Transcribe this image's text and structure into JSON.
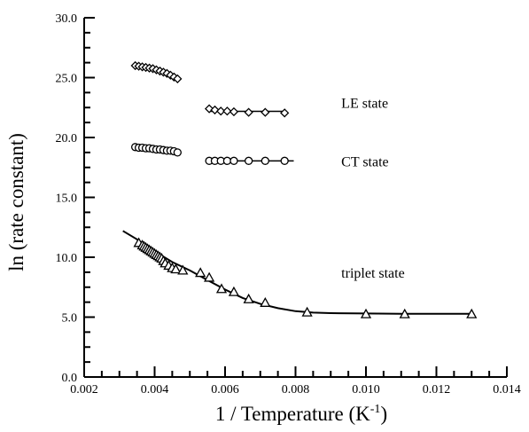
{
  "chart_data": {
    "type": "scatter",
    "xlabel": "1 / Temperature (K",
    "xlabel_superscript": "-1",
    "xlabel_suffix": ")",
    "ylabel": "ln (rate constant)",
    "xlim": [
      0.002,
      0.014
    ],
    "ylim": [
      0.0,
      30.0
    ],
    "x_ticks": [
      0.002,
      0.004,
      0.006,
      0.008,
      0.01,
      0.012,
      0.014
    ],
    "x_tick_labels": [
      "0.002",
      "0.004",
      "0.006",
      "0.008",
      "0.010",
      "0.012",
      "0.014"
    ],
    "y_ticks": [
      0,
      5,
      10,
      15,
      20,
      25,
      30
    ],
    "y_tick_labels": [
      "0.0",
      "5.0",
      "10.0",
      "15.0",
      "20.0",
      "25.0",
      "30.0"
    ],
    "grid": false,
    "legend": "inline labels",
    "series": [
      {
        "name": "LE state",
        "marker": "diamond",
        "points": [
          {
            "x": 0.00345,
            "y": 26.0
          },
          {
            "x": 0.00355,
            "y": 25.95
          },
          {
            "x": 0.00365,
            "y": 25.9
          },
          {
            "x": 0.00375,
            "y": 25.85
          },
          {
            "x": 0.00385,
            "y": 25.8
          },
          {
            "x": 0.00395,
            "y": 25.75
          },
          {
            "x": 0.00405,
            "y": 25.65
          },
          {
            "x": 0.00415,
            "y": 25.55
          },
          {
            "x": 0.00425,
            "y": 25.45
          },
          {
            "x": 0.00435,
            "y": 25.35
          },
          {
            "x": 0.00445,
            "y": 25.2
          },
          {
            "x": 0.00455,
            "y": 25.05
          },
          {
            "x": 0.00465,
            "y": 24.9
          },
          {
            "x": 0.00555,
            "y": 22.4
          },
          {
            "x": 0.00571,
            "y": 22.3
          },
          {
            "x": 0.00588,
            "y": 22.2
          },
          {
            "x": 0.00606,
            "y": 22.2
          },
          {
            "x": 0.00625,
            "y": 22.15
          },
          {
            "x": 0.00667,
            "y": 22.1
          },
          {
            "x": 0.00714,
            "y": 22.1
          },
          {
            "x": 0.00769,
            "y": 22.05
          }
        ],
        "segment": [
          0.00555,
          0.00769
        ],
        "label_pos": [
          0.0093,
          22.5
        ]
      },
      {
        "name": "CT state",
        "marker": "circle",
        "points": [
          {
            "x": 0.00345,
            "y": 19.2
          },
          {
            "x": 0.00355,
            "y": 19.15
          },
          {
            "x": 0.00365,
            "y": 19.15
          },
          {
            "x": 0.00375,
            "y": 19.1
          },
          {
            "x": 0.00385,
            "y": 19.1
          },
          {
            "x": 0.00395,
            "y": 19.05
          },
          {
            "x": 0.00405,
            "y": 19.0
          },
          {
            "x": 0.00415,
            "y": 19.0
          },
          {
            "x": 0.00425,
            "y": 18.95
          },
          {
            "x": 0.00435,
            "y": 18.9
          },
          {
            "x": 0.00445,
            "y": 18.9
          },
          {
            "x": 0.00455,
            "y": 18.85
          },
          {
            "x": 0.00465,
            "y": 18.75
          },
          {
            "x": 0.00555,
            "y": 18.05
          },
          {
            "x": 0.00571,
            "y": 18.05
          },
          {
            "x": 0.00588,
            "y": 18.05
          },
          {
            "x": 0.00606,
            "y": 18.05
          },
          {
            "x": 0.00625,
            "y": 18.05
          },
          {
            "x": 0.00667,
            "y": 18.05
          },
          {
            "x": 0.00714,
            "y": 18.05
          },
          {
            "x": 0.00769,
            "y": 18.05
          }
        ],
        "segment": [
          0.00555,
          0.00795
        ],
        "label_pos": [
          0.0093,
          17.6
        ]
      },
      {
        "name": "triplet state",
        "marker": "triangle",
        "points": [
          {
            "x": 0.00355,
            "y": 11.2
          },
          {
            "x": 0.00365,
            "y": 11.0
          },
          {
            "x": 0.0037,
            "y": 10.9
          },
          {
            "x": 0.00375,
            "y": 10.8
          },
          {
            "x": 0.0038,
            "y": 10.7
          },
          {
            "x": 0.00385,
            "y": 10.6
          },
          {
            "x": 0.0039,
            "y": 10.5
          },
          {
            "x": 0.00395,
            "y": 10.4
          },
          {
            "x": 0.004,
            "y": 10.3
          },
          {
            "x": 0.00405,
            "y": 10.2
          },
          {
            "x": 0.0041,
            "y": 10.1
          },
          {
            "x": 0.00415,
            "y": 10.0
          },
          {
            "x": 0.0042,
            "y": 9.9
          },
          {
            "x": 0.00425,
            "y": 9.7
          },
          {
            "x": 0.0043,
            "y": 9.5
          },
          {
            "x": 0.0044,
            "y": 9.3
          },
          {
            "x": 0.0045,
            "y": 9.1
          },
          {
            "x": 0.0046,
            "y": 9.0
          },
          {
            "x": 0.0048,
            "y": 8.9
          },
          {
            "x": 0.0053,
            "y": 8.7
          },
          {
            "x": 0.00555,
            "y": 8.3
          },
          {
            "x": 0.0059,
            "y": 7.35
          },
          {
            "x": 0.00625,
            "y": 7.1
          },
          {
            "x": 0.00667,
            "y": 6.5
          },
          {
            "x": 0.00714,
            "y": 6.2
          },
          {
            "x": 0.00833,
            "y": 5.4
          },
          {
            "x": 0.01,
            "y": 5.25
          },
          {
            "x": 0.0111,
            "y": 5.25
          },
          {
            "x": 0.013,
            "y": 5.25
          }
        ],
        "fit_curve": [
          {
            "x": 0.0031,
            "y": 12.2
          },
          {
            "x": 0.0035,
            "y": 11.5
          },
          {
            "x": 0.004,
            "y": 10.5
          },
          {
            "x": 0.0045,
            "y": 9.6
          },
          {
            "x": 0.005,
            "y": 8.9
          },
          {
            "x": 0.0055,
            "y": 8.1
          },
          {
            "x": 0.006,
            "y": 7.3
          },
          {
            "x": 0.0065,
            "y": 6.6
          },
          {
            "x": 0.007,
            "y": 6.1
          },
          {
            "x": 0.0075,
            "y": 5.75
          },
          {
            "x": 0.008,
            "y": 5.5
          },
          {
            "x": 0.0085,
            "y": 5.38
          },
          {
            "x": 0.009,
            "y": 5.33
          },
          {
            "x": 0.01,
            "y": 5.3
          },
          {
            "x": 0.011,
            "y": 5.28
          },
          {
            "x": 0.012,
            "y": 5.28
          },
          {
            "x": 0.013,
            "y": 5.28
          }
        ],
        "label_pos": [
          0.0093,
          8.3
        ]
      }
    ]
  }
}
